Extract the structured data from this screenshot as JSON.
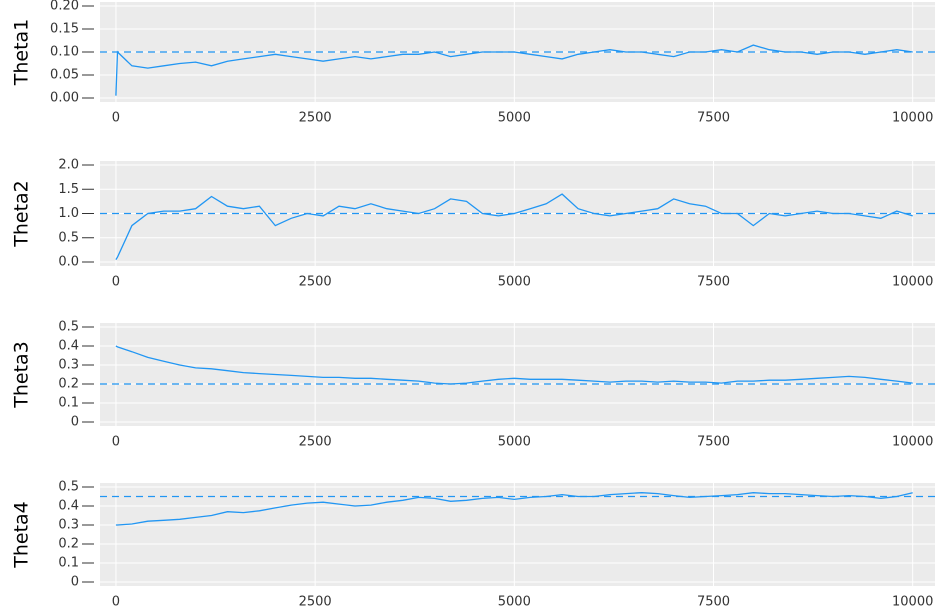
{
  "chart_data": [
    {
      "type": "line",
      "y_label": "Theta1",
      "color": "#2196f3",
      "hline": 0.1,
      "grid": true,
      "xlim": [
        -200,
        10280
      ],
      "xticks": [
        0,
        2500,
        5000,
        7500,
        10000
      ],
      "ylim": [
        0,
        0.2
      ],
      "yticks": [
        {
          "value": 0,
          "label": "0.00"
        },
        {
          "value": 0.05,
          "label": "0.05"
        },
        {
          "value": 0.1,
          "label": "0.10"
        },
        {
          "value": 0.15,
          "label": "0.15"
        },
        {
          "value": 0.2,
          "label": "0.20"
        }
      ],
      "x": [
        0,
        20,
        200,
        400,
        600,
        800,
        1000,
        1200,
        1400,
        1600,
        1800,
        2000,
        2200,
        2400,
        2600,
        2800,
        3000,
        3200,
        3400,
        3600,
        3800,
        4000,
        4200,
        4400,
        4600,
        4800,
        5000,
        5200,
        5400,
        5600,
        5800,
        6000,
        6200,
        6400,
        6600,
        6800,
        7000,
        7200,
        7400,
        7600,
        7800,
        8000,
        8200,
        8400,
        8600,
        8800,
        9000,
        9200,
        9400,
        9600,
        9800,
        10000
      ],
      "values": [
        0.005,
        0.1,
        0.07,
        0.065,
        0.07,
        0.075,
        0.078,
        0.07,
        0.08,
        0.085,
        0.09,
        0.095,
        0.09,
        0.085,
        0.08,
        0.085,
        0.09,
        0.085,
        0.09,
        0.095,
        0.095,
        0.1,
        0.09,
        0.095,
        0.1,
        0.1,
        0.1,
        0.095,
        0.09,
        0.085,
        0.095,
        0.1,
        0.105,
        0.1,
        0.1,
        0.095,
        0.09,
        0.1,
        0.1,
        0.105,
        0.1,
        0.115,
        0.105,
        0.1,
        0.1,
        0.095,
        0.1,
        0.1,
        0.095,
        0.1,
        0.105,
        0.1
      ]
    },
    {
      "type": "line",
      "y_label": "Theta2",
      "color": "#2196f3",
      "hline": 1,
      "grid": true,
      "xlim": [
        -200,
        10280
      ],
      "xticks": [
        0,
        2500,
        5000,
        7500,
        10000
      ],
      "ylim": [
        0,
        2
      ],
      "yticks": [
        {
          "value": 0,
          "label": "0.0"
        },
        {
          "value": 0.5,
          "label": "0.5"
        },
        {
          "value": 1,
          "label": "1.0"
        },
        {
          "value": 1.5,
          "label": "1.5"
        },
        {
          "value": 2,
          "label": "2.0"
        }
      ],
      "x": [
        0,
        20,
        200,
        400,
        600,
        800,
        1000,
        1200,
        1400,
        1600,
        1800,
        2000,
        2200,
        2400,
        2600,
        2800,
        3000,
        3200,
        3400,
        3600,
        3800,
        4000,
        4200,
        4400,
        4600,
        4800,
        5000,
        5200,
        5400,
        5600,
        5800,
        6000,
        6200,
        6400,
        6600,
        6800,
        7000,
        7200,
        7400,
        7600,
        7800,
        8000,
        8200,
        8400,
        8600,
        8800,
        9000,
        9200,
        9400,
        9600,
        9800,
        10000
      ],
      "values": [
        0.05,
        0.1,
        0.75,
        1.0,
        1.05,
        1.05,
        1.1,
        1.35,
        1.15,
        1.1,
        1.15,
        0.75,
        0.9,
        1.0,
        0.95,
        1.15,
        1.1,
        1.2,
        1.1,
        1.05,
        1.0,
        1.1,
        1.3,
        1.25,
        1.0,
        0.95,
        1.0,
        1.1,
        1.2,
        1.4,
        1.1,
        1.0,
        0.95,
        1.0,
        1.05,
        1.1,
        1.3,
        1.2,
        1.15,
        1.0,
        1.0,
        0.75,
        1.0,
        0.95,
        1.0,
        1.05,
        1.0,
        1.0,
        0.95,
        0.9,
        1.05,
        0.95
      ]
    },
    {
      "type": "line",
      "y_label": "Theta3",
      "color": "#2196f3",
      "hline": 0.2,
      "grid": true,
      "xlim": [
        -200,
        10280
      ],
      "xticks": [
        0,
        2500,
        5000,
        7500,
        10000
      ],
      "ylim": [
        0,
        0.5
      ],
      "yticks": [
        0,
        0.1,
        0.2,
        0.3,
        0.4,
        0.5
      ],
      "x": [
        0,
        20,
        200,
        400,
        600,
        800,
        1000,
        1200,
        1400,
        1600,
        1800,
        2000,
        2200,
        2400,
        2600,
        2800,
        3000,
        3200,
        3400,
        3600,
        3800,
        4000,
        4200,
        4400,
        4600,
        4800,
        5000,
        5200,
        5400,
        5600,
        5800,
        6000,
        6200,
        6400,
        6600,
        6800,
        7000,
        7200,
        7400,
        7600,
        7800,
        8000,
        8200,
        8400,
        8600,
        8800,
        9000,
        9200,
        9400,
        9600,
        9800,
        10000
      ],
      "values": [
        0.4,
        0.395,
        0.37,
        0.34,
        0.32,
        0.3,
        0.285,
        0.28,
        0.27,
        0.26,
        0.255,
        0.25,
        0.245,
        0.24,
        0.235,
        0.235,
        0.23,
        0.23,
        0.225,
        0.22,
        0.215,
        0.205,
        0.2,
        0.205,
        0.215,
        0.225,
        0.23,
        0.225,
        0.225,
        0.225,
        0.22,
        0.215,
        0.21,
        0.215,
        0.215,
        0.21,
        0.215,
        0.21,
        0.21,
        0.205,
        0.215,
        0.215,
        0.22,
        0.22,
        0.225,
        0.23,
        0.235,
        0.24,
        0.235,
        0.225,
        0.215,
        0.205
      ]
    },
    {
      "type": "line",
      "y_label": "Theta4",
      "color": "#2196f3",
      "hline": 0.45,
      "grid": true,
      "xlim": [
        -200,
        10280
      ],
      "xticks": [
        0,
        2500,
        5000,
        7500,
        10000
      ],
      "ylim": [
        0,
        0.5
      ],
      "yticks": [
        0,
        0.1,
        0.2,
        0.3,
        0.4,
        0.5
      ],
      "x": [
        0,
        20,
        200,
        400,
        600,
        800,
        1000,
        1200,
        1400,
        1600,
        1800,
        2000,
        2200,
        2400,
        2600,
        2800,
        3000,
        3200,
        3400,
        3600,
        3800,
        4000,
        4200,
        4400,
        4600,
        4800,
        5000,
        5200,
        5400,
        5600,
        5800,
        6000,
        6200,
        6400,
        6600,
        6800,
        7000,
        7200,
        7400,
        7600,
        7800,
        8000,
        8200,
        8400,
        8600,
        8800,
        9000,
        9200,
        9400,
        9600,
        9800,
        10000
      ],
      "values": [
        0.3,
        0.3,
        0.305,
        0.32,
        0.325,
        0.33,
        0.34,
        0.35,
        0.37,
        0.365,
        0.375,
        0.39,
        0.405,
        0.415,
        0.42,
        0.41,
        0.4,
        0.405,
        0.42,
        0.43,
        0.445,
        0.44,
        0.425,
        0.43,
        0.44,
        0.445,
        0.435,
        0.445,
        0.45,
        0.46,
        0.45,
        0.45,
        0.46,
        0.465,
        0.47,
        0.465,
        0.455,
        0.445,
        0.45,
        0.455,
        0.46,
        0.47,
        0.465,
        0.465,
        0.46,
        0.455,
        0.45,
        0.455,
        0.45,
        0.44,
        0.45,
        0.47
      ]
    }
  ]
}
